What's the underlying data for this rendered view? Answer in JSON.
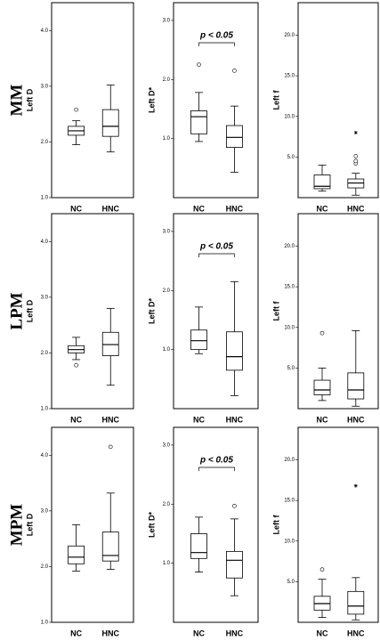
{
  "rows": [
    "MM",
    "LPM",
    "MPM"
  ],
  "chart_data": [
    {
      "type": "box",
      "ylabel": "Left D",
      "categories": [
        "NC",
        "HNC"
      ],
      "ylim": [
        1,
        4.5
      ],
      "yticks": [
        {
          "value": 1,
          "label": "1.0"
        },
        {
          "value": 2,
          "label": "2.0"
        },
        {
          "value": 3,
          "label": "3.0"
        },
        {
          "value": 4,
          "label": "4.0"
        }
      ],
      "boxes": [
        {
          "min": 1.95,
          "q1": 2.12,
          "median": 2.2,
          "q3": 2.28,
          "max": 2.38,
          "outliers": [
            2.58
          ],
          "extremes": []
        },
        {
          "min": 1.82,
          "q1": 2.1,
          "median": 2.28,
          "q3": 2.58,
          "max": 3.02,
          "outliers": [],
          "extremes": []
        }
      ]
    },
    {
      "type": "box",
      "ylabel": "Left D*",
      "annotation": "p < 0.05",
      "categories": [
        "NC",
        "HNC"
      ],
      "ylim": [
        0,
        3.3
      ],
      "yticks": [
        {
          "value": 1,
          "label": "1.0"
        },
        {
          "value": 2,
          "label": "2.0"
        },
        {
          "value": 3,
          "label": "3.0"
        }
      ],
      "boxes": [
        {
          "min": 0.95,
          "q1": 1.08,
          "median": 1.37,
          "q3": 1.47,
          "max": 1.78,
          "outliers": [
            2.25
          ],
          "extremes": []
        },
        {
          "min": 0.43,
          "q1": 0.85,
          "median": 1.02,
          "q3": 1.22,
          "max": 1.55,
          "outliers": [
            2.15
          ],
          "extremes": []
        }
      ]
    },
    {
      "type": "box",
      "ylabel": "Left f",
      "categories": [
        "NC",
        "HNC"
      ],
      "ylim": [
        0,
        24
      ],
      "yticks": [
        {
          "value": 5,
          "label": "5.0"
        },
        {
          "value": 10,
          "label": "10.0"
        },
        {
          "value": 15,
          "label": "15.0"
        },
        {
          "value": 20,
          "label": "20.0"
        }
      ],
      "boxes": [
        {
          "min": 0.8,
          "q1": 1.1,
          "median": 1.4,
          "q3": 2.8,
          "max": 4.0,
          "outliers": [],
          "extremes": []
        },
        {
          "min": 0.3,
          "q1": 1.2,
          "median": 1.8,
          "q3": 2.3,
          "max": 3.0,
          "outliers": [
            4.2,
            4.5,
            5.1
          ],
          "extremes": [
            8.0
          ]
        }
      ]
    },
    {
      "type": "box",
      "ylabel": "Left D",
      "categories": [
        "NC",
        "HNC"
      ],
      "ylim": [
        1,
        4.5
      ],
      "yticks": [
        {
          "value": 1,
          "label": "1.0"
        },
        {
          "value": 2,
          "label": "2.0"
        },
        {
          "value": 3,
          "label": "3.0"
        },
        {
          "value": 4,
          "label": "4.0"
        }
      ],
      "boxes": [
        {
          "min": 1.88,
          "q1": 2.0,
          "median": 2.06,
          "q3": 2.13,
          "max": 2.28,
          "outliers": [
            1.78
          ],
          "extremes": []
        },
        {
          "min": 1.42,
          "q1": 1.95,
          "median": 2.15,
          "q3": 2.37,
          "max": 2.8,
          "outliers": [],
          "extremes": []
        }
      ]
    },
    {
      "type": "box",
      "ylabel": "Left D*",
      "annotation": "p < 0.05",
      "categories": [
        "NC",
        "HNC"
      ],
      "ylim": [
        0,
        3.3
      ],
      "yticks": [
        {
          "value": 1,
          "label": "1.0"
        },
        {
          "value": 2,
          "label": "2.0"
        },
        {
          "value": 3,
          "label": "3.0"
        }
      ],
      "boxes": [
        {
          "min": 0.93,
          "q1": 1.0,
          "median": 1.15,
          "q3": 1.33,
          "max": 1.72,
          "outliers": [],
          "extremes": []
        },
        {
          "min": 0.22,
          "q1": 0.65,
          "median": 0.88,
          "q3": 1.3,
          "max": 2.15,
          "outliers": [],
          "extremes": []
        }
      ]
    },
    {
      "type": "box",
      "ylabel": "Left f",
      "categories": [
        "NC",
        "HNC"
      ],
      "ylim": [
        0,
        24
      ],
      "yticks": [
        {
          "value": 5,
          "label": "5.0"
        },
        {
          "value": 10,
          "label": "10.0"
        },
        {
          "value": 15,
          "label": "15.0"
        },
        {
          "value": 20,
          "label": "20.0"
        }
      ],
      "boxes": [
        {
          "min": 1.0,
          "q1": 1.7,
          "median": 2.3,
          "q3": 3.5,
          "max": 5.0,
          "outliers": [
            9.3
          ],
          "extremes": []
        },
        {
          "min": 0.3,
          "q1": 1.2,
          "median": 2.3,
          "q3": 4.4,
          "max": 9.6,
          "outliers": [],
          "extremes": []
        }
      ]
    },
    {
      "type": "box",
      "ylabel": "Left D",
      "categories": [
        "NC",
        "HNC"
      ],
      "ylim": [
        1,
        4.5
      ],
      "yticks": [
        {
          "value": 1,
          "label": "1.0"
        },
        {
          "value": 2,
          "label": "2.0"
        },
        {
          "value": 3,
          "label": "3.0"
        },
        {
          "value": 4,
          "label": "4.0"
        }
      ],
      "boxes": [
        {
          "min": 1.92,
          "q1": 2.05,
          "median": 2.17,
          "q3": 2.37,
          "max": 2.75,
          "outliers": [],
          "extremes": []
        },
        {
          "min": 1.95,
          "q1": 2.1,
          "median": 2.2,
          "q3": 2.62,
          "max": 3.32,
          "outliers": [
            4.15
          ],
          "extremes": []
        }
      ]
    },
    {
      "type": "box",
      "ylabel": "Left D*",
      "annotation": "p < 0.05",
      "categories": [
        "NC",
        "HNC"
      ],
      "ylim": [
        0,
        3.3
      ],
      "yticks": [
        {
          "value": 1,
          "label": "1.0"
        },
        {
          "value": 2,
          "label": "2.0"
        },
        {
          "value": 3,
          "label": "3.0"
        }
      ],
      "boxes": [
        {
          "min": 0.85,
          "q1": 1.08,
          "median": 1.18,
          "q3": 1.5,
          "max": 1.78,
          "outliers": [],
          "extremes": []
        },
        {
          "min": 0.45,
          "q1": 0.75,
          "median": 1.05,
          "q3": 1.2,
          "max": 1.75,
          "outliers": [
            1.97
          ],
          "extremes": []
        }
      ]
    },
    {
      "type": "box",
      "ylabel": "Left f",
      "categories": [
        "NC",
        "HNC"
      ],
      "ylim": [
        0,
        24
      ],
      "yticks": [
        {
          "value": 5,
          "label": "5.0"
        },
        {
          "value": 10,
          "label": "10.0"
        },
        {
          "value": 15,
          "label": "15.0"
        },
        {
          "value": 20,
          "label": "20.0"
        }
      ],
      "boxes": [
        {
          "min": 0.6,
          "q1": 1.5,
          "median": 2.3,
          "q3": 3.2,
          "max": 5.3,
          "outliers": [
            6.5
          ],
          "extremes": []
        },
        {
          "min": 0.3,
          "q1": 1.0,
          "median": 2.0,
          "q3": 3.8,
          "max": 5.5,
          "outliers": [],
          "extremes": [
            16.8
          ]
        }
      ]
    }
  ]
}
